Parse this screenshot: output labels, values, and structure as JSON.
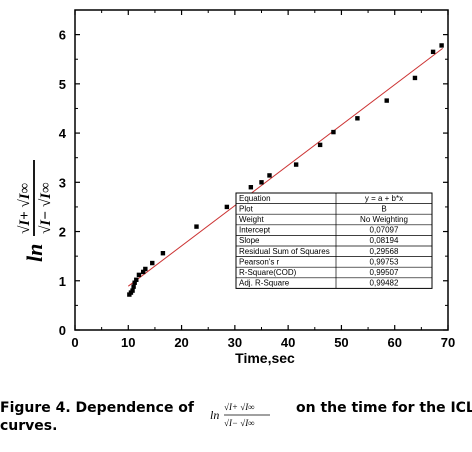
{
  "chart_data": {
    "type": "scatter",
    "xlabel": "Time,sec",
    "ylabel": {
      "prefix": "ln",
      "num": "√I+ √I∞",
      "den": "√I− √I∞"
    },
    "xlim": [
      0,
      70
    ],
    "ylim": [
      0,
      6.5
    ],
    "xticks": [
      0,
      10,
      20,
      30,
      40,
      50,
      60,
      70
    ],
    "yticks": [
      0,
      1,
      2,
      3,
      4,
      5,
      6
    ],
    "grid": false,
    "series": [
      {
        "x": [
          10.2,
          10.5,
          10.8,
          11.0,
          11.2,
          11.5,
          12.0,
          12.8,
          13.2,
          14.5,
          16.5,
          22.8,
          28.5,
          33.0,
          35.0,
          36.5,
          41.5,
          46.0,
          48.5,
          53.0,
          58.5,
          63.8,
          67.2,
          68.8
        ],
        "y": [
          0.72,
          0.76,
          0.8,
          0.88,
          0.96,
          1.02,
          1.12,
          1.18,
          1.24,
          1.36,
          1.56,
          2.1,
          2.5,
          2.9,
          3.0,
          3.14,
          3.36,
          3.76,
          4.02,
          4.3,
          4.66,
          5.12,
          5.65,
          5.78
        ]
      }
    ],
    "fit_line": {
      "x": [
        10,
        69
      ],
      "y": [
        0.89,
        5.72
      ],
      "color": "#cc3333"
    },
    "stats_table": {
      "rows": [
        [
          "Equation",
          "y = a + b*x"
        ],
        [
          "Plot",
          "B"
        ],
        [
          "Weight",
          "No Weighting"
        ],
        [
          "Intercept",
          "0,07097"
        ],
        [
          "Slope",
          "0,08194"
        ],
        [
          "Residual Sum of Squares",
          "0,29568"
        ],
        [
          "Pearson's r",
          "0,99753"
        ],
        [
          "R-Square(COD)",
          "0,99507"
        ],
        [
          "Adj. R-Square",
          "0,99482"
        ]
      ]
    }
  },
  "caption": {
    "part1": "Figure 4. Dependence of",
    "part2": "curves.",
    "part3": "on the time for the ICL",
    "formula": {
      "prefix": "ln",
      "num": "√I+ √I∞",
      "den": "√I− √I∞"
    }
  },
  "colors": {
    "fit": "#cc3333",
    "points": "#000000",
    "axes": "#000000"
  }
}
